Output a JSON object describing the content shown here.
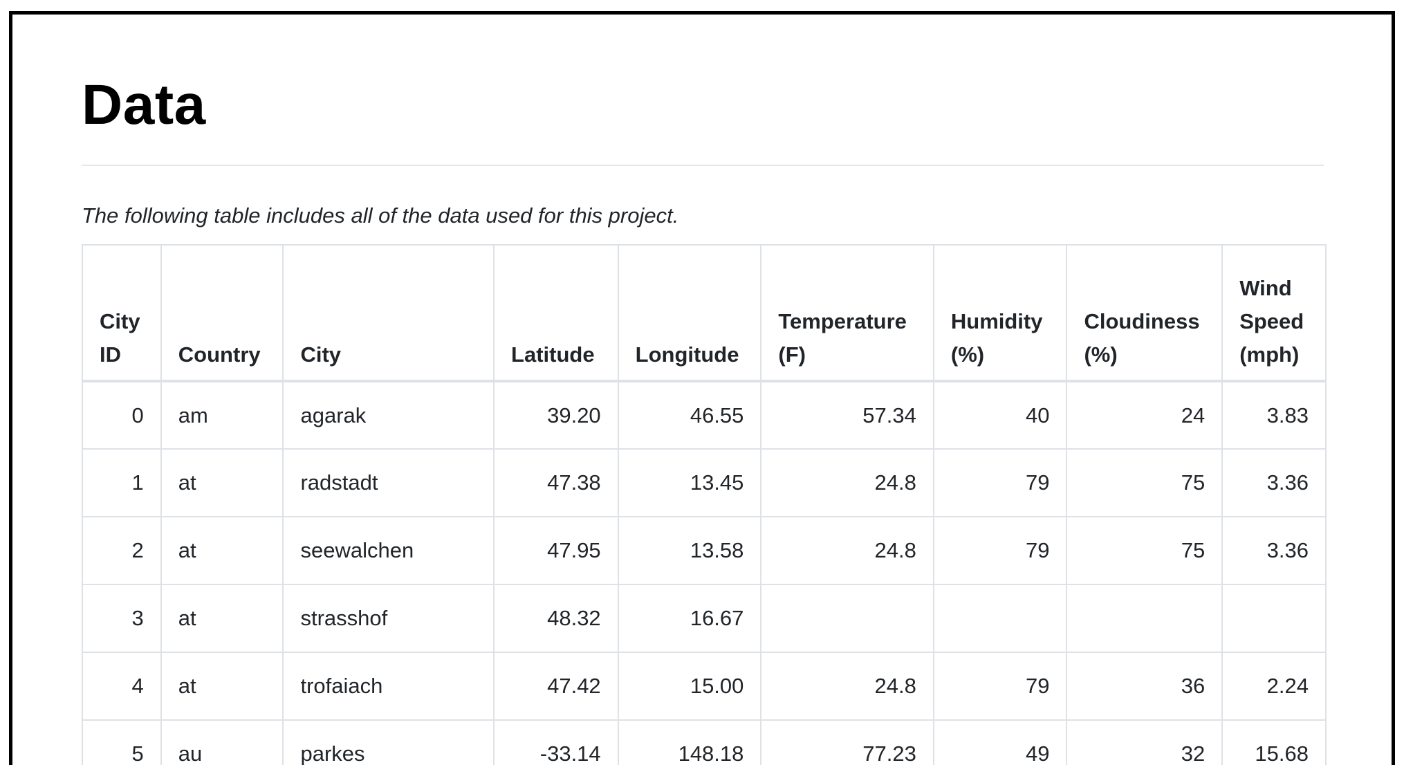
{
  "page": {
    "title": "Data",
    "intro": "The following table includes all of the data used for this project."
  },
  "table": {
    "headers": [
      {
        "label": "City ID"
      },
      {
        "label": "Country"
      },
      {
        "label": "City"
      },
      {
        "label": "Latitude"
      },
      {
        "label": "Longitude"
      },
      {
        "label": "Temperature (F)"
      },
      {
        "label": "Humidity (%)"
      },
      {
        "label": "Cloudiness (%)"
      },
      {
        "label": "Wind Speed (mph)"
      }
    ],
    "rows": [
      {
        "id": "0",
        "country": "am",
        "city": "agarak",
        "lat": "39.20",
        "lon": "46.55",
        "temp": "57.34",
        "humidity": "40",
        "cloudiness": "24",
        "wind": "3.83"
      },
      {
        "id": "1",
        "country": "at",
        "city": "radstadt",
        "lat": "47.38",
        "lon": "13.45",
        "temp": "24.8",
        "humidity": "79",
        "cloudiness": "75",
        "wind": "3.36"
      },
      {
        "id": "2",
        "country": "at",
        "city": "seewalchen",
        "lat": "47.95",
        "lon": "13.58",
        "temp": "24.8",
        "humidity": "79",
        "cloudiness": "75",
        "wind": "3.36"
      },
      {
        "id": "3",
        "country": "at",
        "city": "strasshof",
        "lat": "48.32",
        "lon": "16.67",
        "temp": "",
        "humidity": "",
        "cloudiness": "",
        "wind": ""
      },
      {
        "id": "4",
        "country": "at",
        "city": "trofaiach",
        "lat": "47.42",
        "lon": "15.00",
        "temp": "24.8",
        "humidity": "79",
        "cloudiness": "36",
        "wind": "2.24"
      },
      {
        "id": "5",
        "country": "au",
        "city": "parkes",
        "lat": "-33.14",
        "lon": "148.18",
        "temp": "77.23",
        "humidity": "49",
        "cloudiness": "32",
        "wind": "15.68"
      }
    ]
  }
}
